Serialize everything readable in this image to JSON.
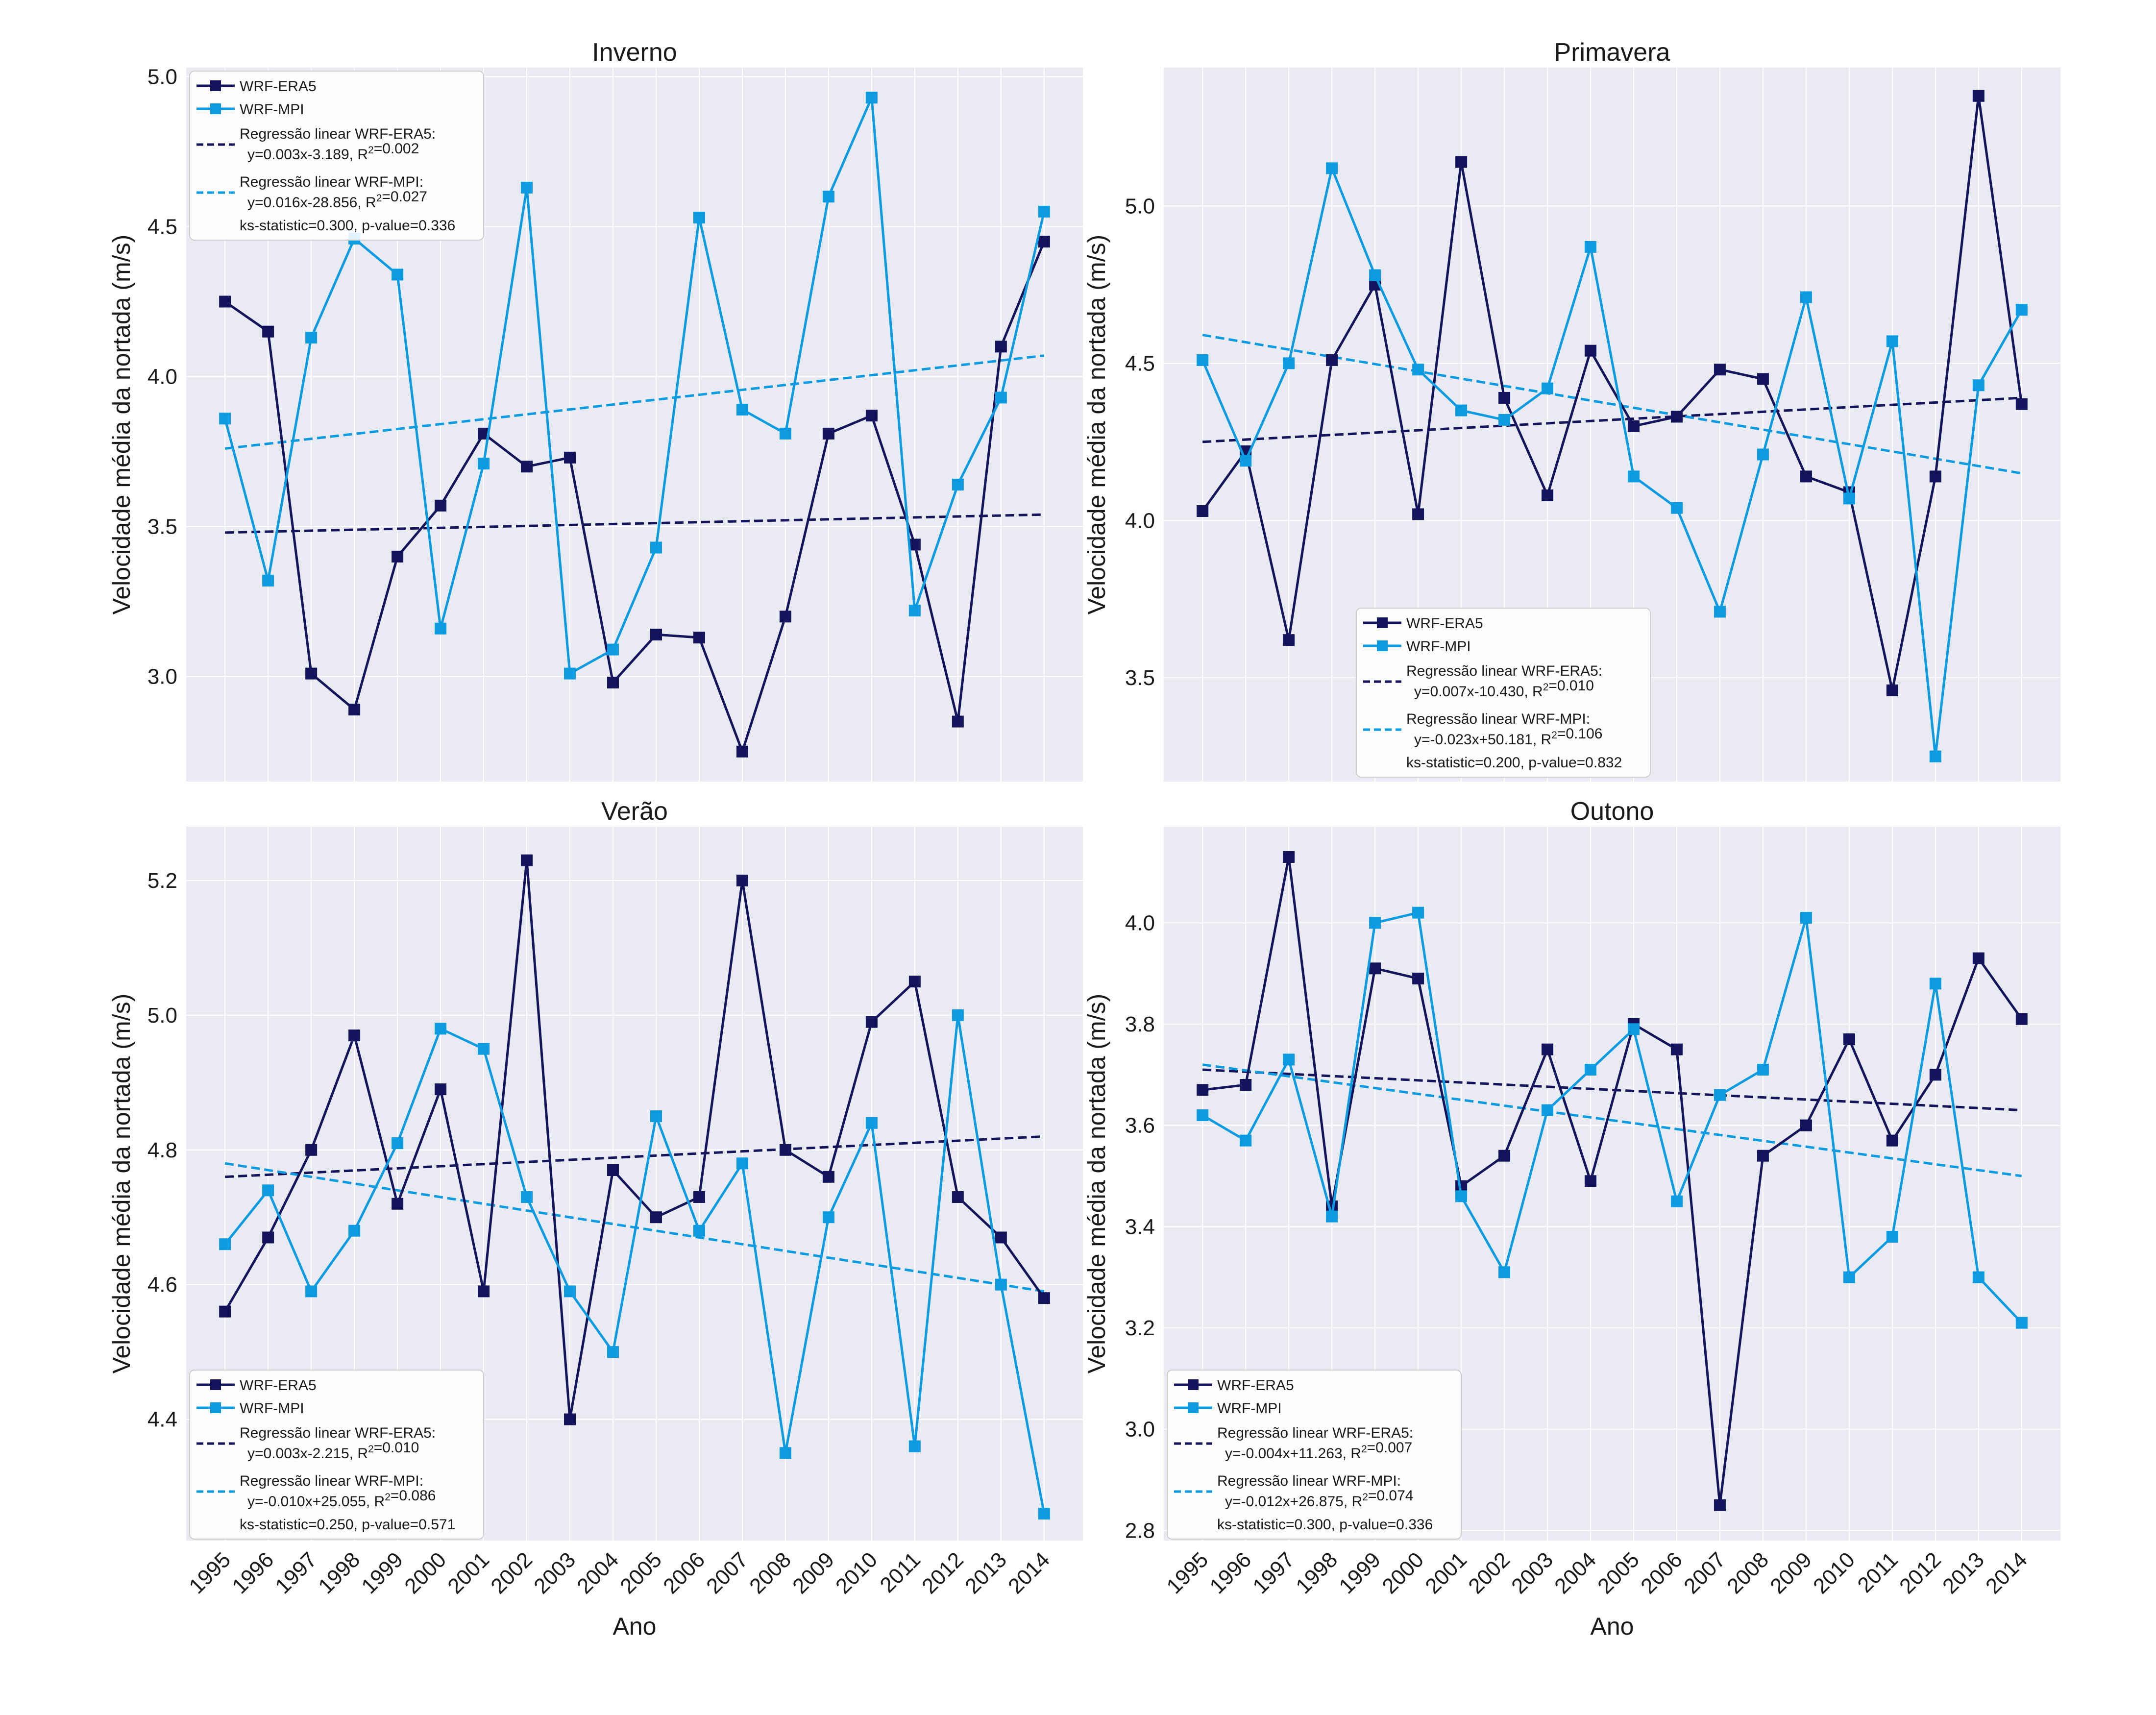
{
  "colors": {
    "era5": "#14145c",
    "mpi": "#0c9be0",
    "panel_bg": "#eaeaf2",
    "grid": "#ffffff"
  },
  "x_tick_labels": [
    "1995",
    "1996",
    "1997",
    "1998",
    "1999",
    "2000",
    "2001",
    "2002",
    "2003",
    "2004",
    "2005",
    "2006",
    "2007",
    "2008",
    "2009",
    "2010",
    "2011",
    "2012",
    "2013",
    "2014"
  ],
  "chart_data": [
    {
      "type": "line",
      "title": "Inverno",
      "xlabel": "",
      "ylabel": "Velocidade média da nortada (m/s)",
      "x": [
        1995,
        1996,
        1997,
        1998,
        1999,
        2000,
        2001,
        2002,
        2003,
        2004,
        2005,
        2006,
        2007,
        2008,
        2009,
        2010,
        2011,
        2012,
        2013,
        2014
      ],
      "xlim": [
        1994.1,
        2014.9
      ],
      "ylim": [
        2.65,
        5.03
      ],
      "yticks": [
        3.0,
        3.5,
        4.0,
        4.5,
        5.0
      ],
      "legend_position": "upper-left",
      "series": [
        {
          "name": "WRF-ERA5",
          "values": [
            4.25,
            4.15,
            3.01,
            2.89,
            3.4,
            3.57,
            3.81,
            3.7,
            3.73,
            2.98,
            3.14,
            3.13,
            2.75,
            3.2,
            3.81,
            3.87,
            3.44,
            2.85,
            4.1,
            4.45
          ]
        },
        {
          "name": "WRF-MPI",
          "values": [
            3.86,
            3.32,
            4.13,
            4.46,
            4.34,
            3.16,
            3.71,
            4.63,
            3.01,
            3.09,
            3.43,
            4.53,
            3.89,
            3.81,
            4.6,
            4.93,
            3.22,
            3.64,
            3.93,
            4.55
          ]
        }
      ],
      "regression": [
        {
          "series": "WRF-ERA5",
          "line1": "Regressão linear WRF-ERA5:",
          "line2": "y=0.003x-3.189, R²=0.002",
          "start": 3.48,
          "end": 3.54
        },
        {
          "series": "WRF-MPI",
          "line1": "Regressão linear WRF-MPI:",
          "line2": "y=0.016x-28.856, R²=0.027",
          "start": 3.76,
          "end": 4.07
        }
      ],
      "ks_text": "ks-statistic=0.300, p-value=0.336"
    },
    {
      "type": "line",
      "title": "Primavera",
      "xlabel": "",
      "ylabel": "Velocidade média da nortada (m/s)",
      "x": [
        1995,
        1996,
        1997,
        1998,
        1999,
        2000,
        2001,
        2002,
        2003,
        2004,
        2005,
        2006,
        2007,
        2008,
        2009,
        2010,
        2011,
        2012,
        2013,
        2014
      ],
      "xlim": [
        1994.1,
        2014.9
      ],
      "ylim": [
        3.17,
        5.44
      ],
      "yticks": [
        3.5,
        4.0,
        4.5,
        5.0
      ],
      "legend_position": "lower-center",
      "series": [
        {
          "name": "WRF-ERA5",
          "values": [
            4.03,
            4.22,
            3.62,
            4.51,
            4.75,
            4.02,
            5.14,
            4.39,
            4.08,
            4.54,
            4.3,
            4.33,
            4.48,
            4.45,
            4.14,
            4.09,
            3.46,
            4.14,
            5.35,
            4.37
          ]
        },
        {
          "name": "WRF-MPI",
          "values": [
            4.51,
            4.19,
            4.5,
            5.12,
            4.78,
            4.48,
            4.35,
            4.32,
            4.42,
            4.87,
            4.14,
            4.04,
            3.71,
            4.21,
            4.71,
            4.07,
            4.57,
            3.25,
            4.43,
            4.67
          ]
        }
      ],
      "regression": [
        {
          "series": "WRF-ERA5",
          "line1": "Regressão linear WRF-ERA5:",
          "line2": "y=0.007x-10.430, R²=0.010",
          "start": 4.25,
          "end": 4.39
        },
        {
          "series": "WRF-MPI",
          "line1": "Regressão linear WRF-MPI:",
          "line2": "y=-0.023x+50.181, R²=0.106",
          "start": 4.59,
          "end": 4.15
        }
      ],
      "ks_text": "ks-statistic=0.200, p-value=0.832"
    },
    {
      "type": "line",
      "title": "Verão",
      "xlabel": "Ano",
      "ylabel": "Velocidade média da nortada (m/s)",
      "x": [
        1995,
        1996,
        1997,
        1998,
        1999,
        2000,
        2001,
        2002,
        2003,
        2004,
        2005,
        2006,
        2007,
        2008,
        2009,
        2010,
        2011,
        2012,
        2013,
        2014
      ],
      "xlim": [
        1994.1,
        2014.9
      ],
      "ylim": [
        4.22,
        5.28
      ],
      "yticks": [
        4.4,
        4.6,
        4.8,
        5.0,
        5.2
      ],
      "legend_position": "lower-left",
      "series": [
        {
          "name": "WRF-ERA5",
          "values": [
            4.56,
            4.67,
            4.8,
            4.97,
            4.72,
            4.89,
            4.59,
            5.23,
            4.4,
            4.77,
            4.7,
            4.73,
            5.2,
            4.8,
            4.76,
            4.99,
            5.05,
            4.73,
            4.67,
            4.58
          ]
        },
        {
          "name": "WRF-MPI",
          "values": [
            4.66,
            4.74,
            4.59,
            4.68,
            4.81,
            4.98,
            4.95,
            4.73,
            4.59,
            4.5,
            4.85,
            4.68,
            4.78,
            4.35,
            4.7,
            4.84,
            4.36,
            5.0,
            4.6,
            4.26
          ]
        }
      ],
      "regression": [
        {
          "series": "WRF-ERA5",
          "line1": "Regressão linear WRF-ERA5:",
          "line2": "y=0.003x-2.215, R²=0.010",
          "start": 4.76,
          "end": 4.82
        },
        {
          "series": "WRF-MPI",
          "line1": "Regressão linear WRF-MPI:",
          "line2": "y=-0.010x+25.055, R²=0.086",
          "start": 4.78,
          "end": 4.59
        }
      ],
      "ks_text": "ks-statistic=0.250, p-value=0.571"
    },
    {
      "type": "line",
      "title": "Outono",
      "xlabel": "Ano",
      "ylabel": "Velocidade média da nortada (m/s)",
      "x": [
        1995,
        1996,
        1997,
        1998,
        1999,
        2000,
        2001,
        2002,
        2003,
        2004,
        2005,
        2006,
        2007,
        2008,
        2009,
        2010,
        2011,
        2012,
        2013,
        2014
      ],
      "xlim": [
        1994.1,
        2014.9
      ],
      "ylim": [
        2.78,
        4.19
      ],
      "yticks": [
        2.8,
        3.0,
        3.2,
        3.4,
        3.6,
        3.8,
        4.0
      ],
      "legend_position": "lower-left",
      "series": [
        {
          "name": "WRF-ERA5",
          "values": [
            3.67,
            3.68,
            4.13,
            3.44,
            3.91,
            3.89,
            3.48,
            3.54,
            3.75,
            3.49,
            3.8,
            3.75,
            2.85,
            3.54,
            3.6,
            3.77,
            3.57,
            3.7,
            3.93,
            3.81
          ]
        },
        {
          "name": "WRF-MPI",
          "values": [
            3.62,
            3.57,
            3.73,
            3.42,
            4.0,
            4.02,
            3.46,
            3.31,
            3.63,
            3.71,
            3.79,
            3.45,
            3.66,
            3.71,
            4.01,
            3.3,
            3.38,
            3.88,
            3.3,
            3.21
          ]
        }
      ],
      "regression": [
        {
          "series": "WRF-ERA5",
          "line1": "Regressão linear WRF-ERA5:",
          "line2": "y=-0.004x+11.263, R²=0.007",
          "start": 3.71,
          "end": 3.63
        },
        {
          "series": "WRF-MPI",
          "line1": "Regressão linear WRF-MPI:",
          "line2": "y=-0.012x+26.875, R²=0.074",
          "start": 3.72,
          "end": 3.5
        }
      ],
      "ks_text": "ks-statistic=0.300, p-value=0.336"
    }
  ]
}
